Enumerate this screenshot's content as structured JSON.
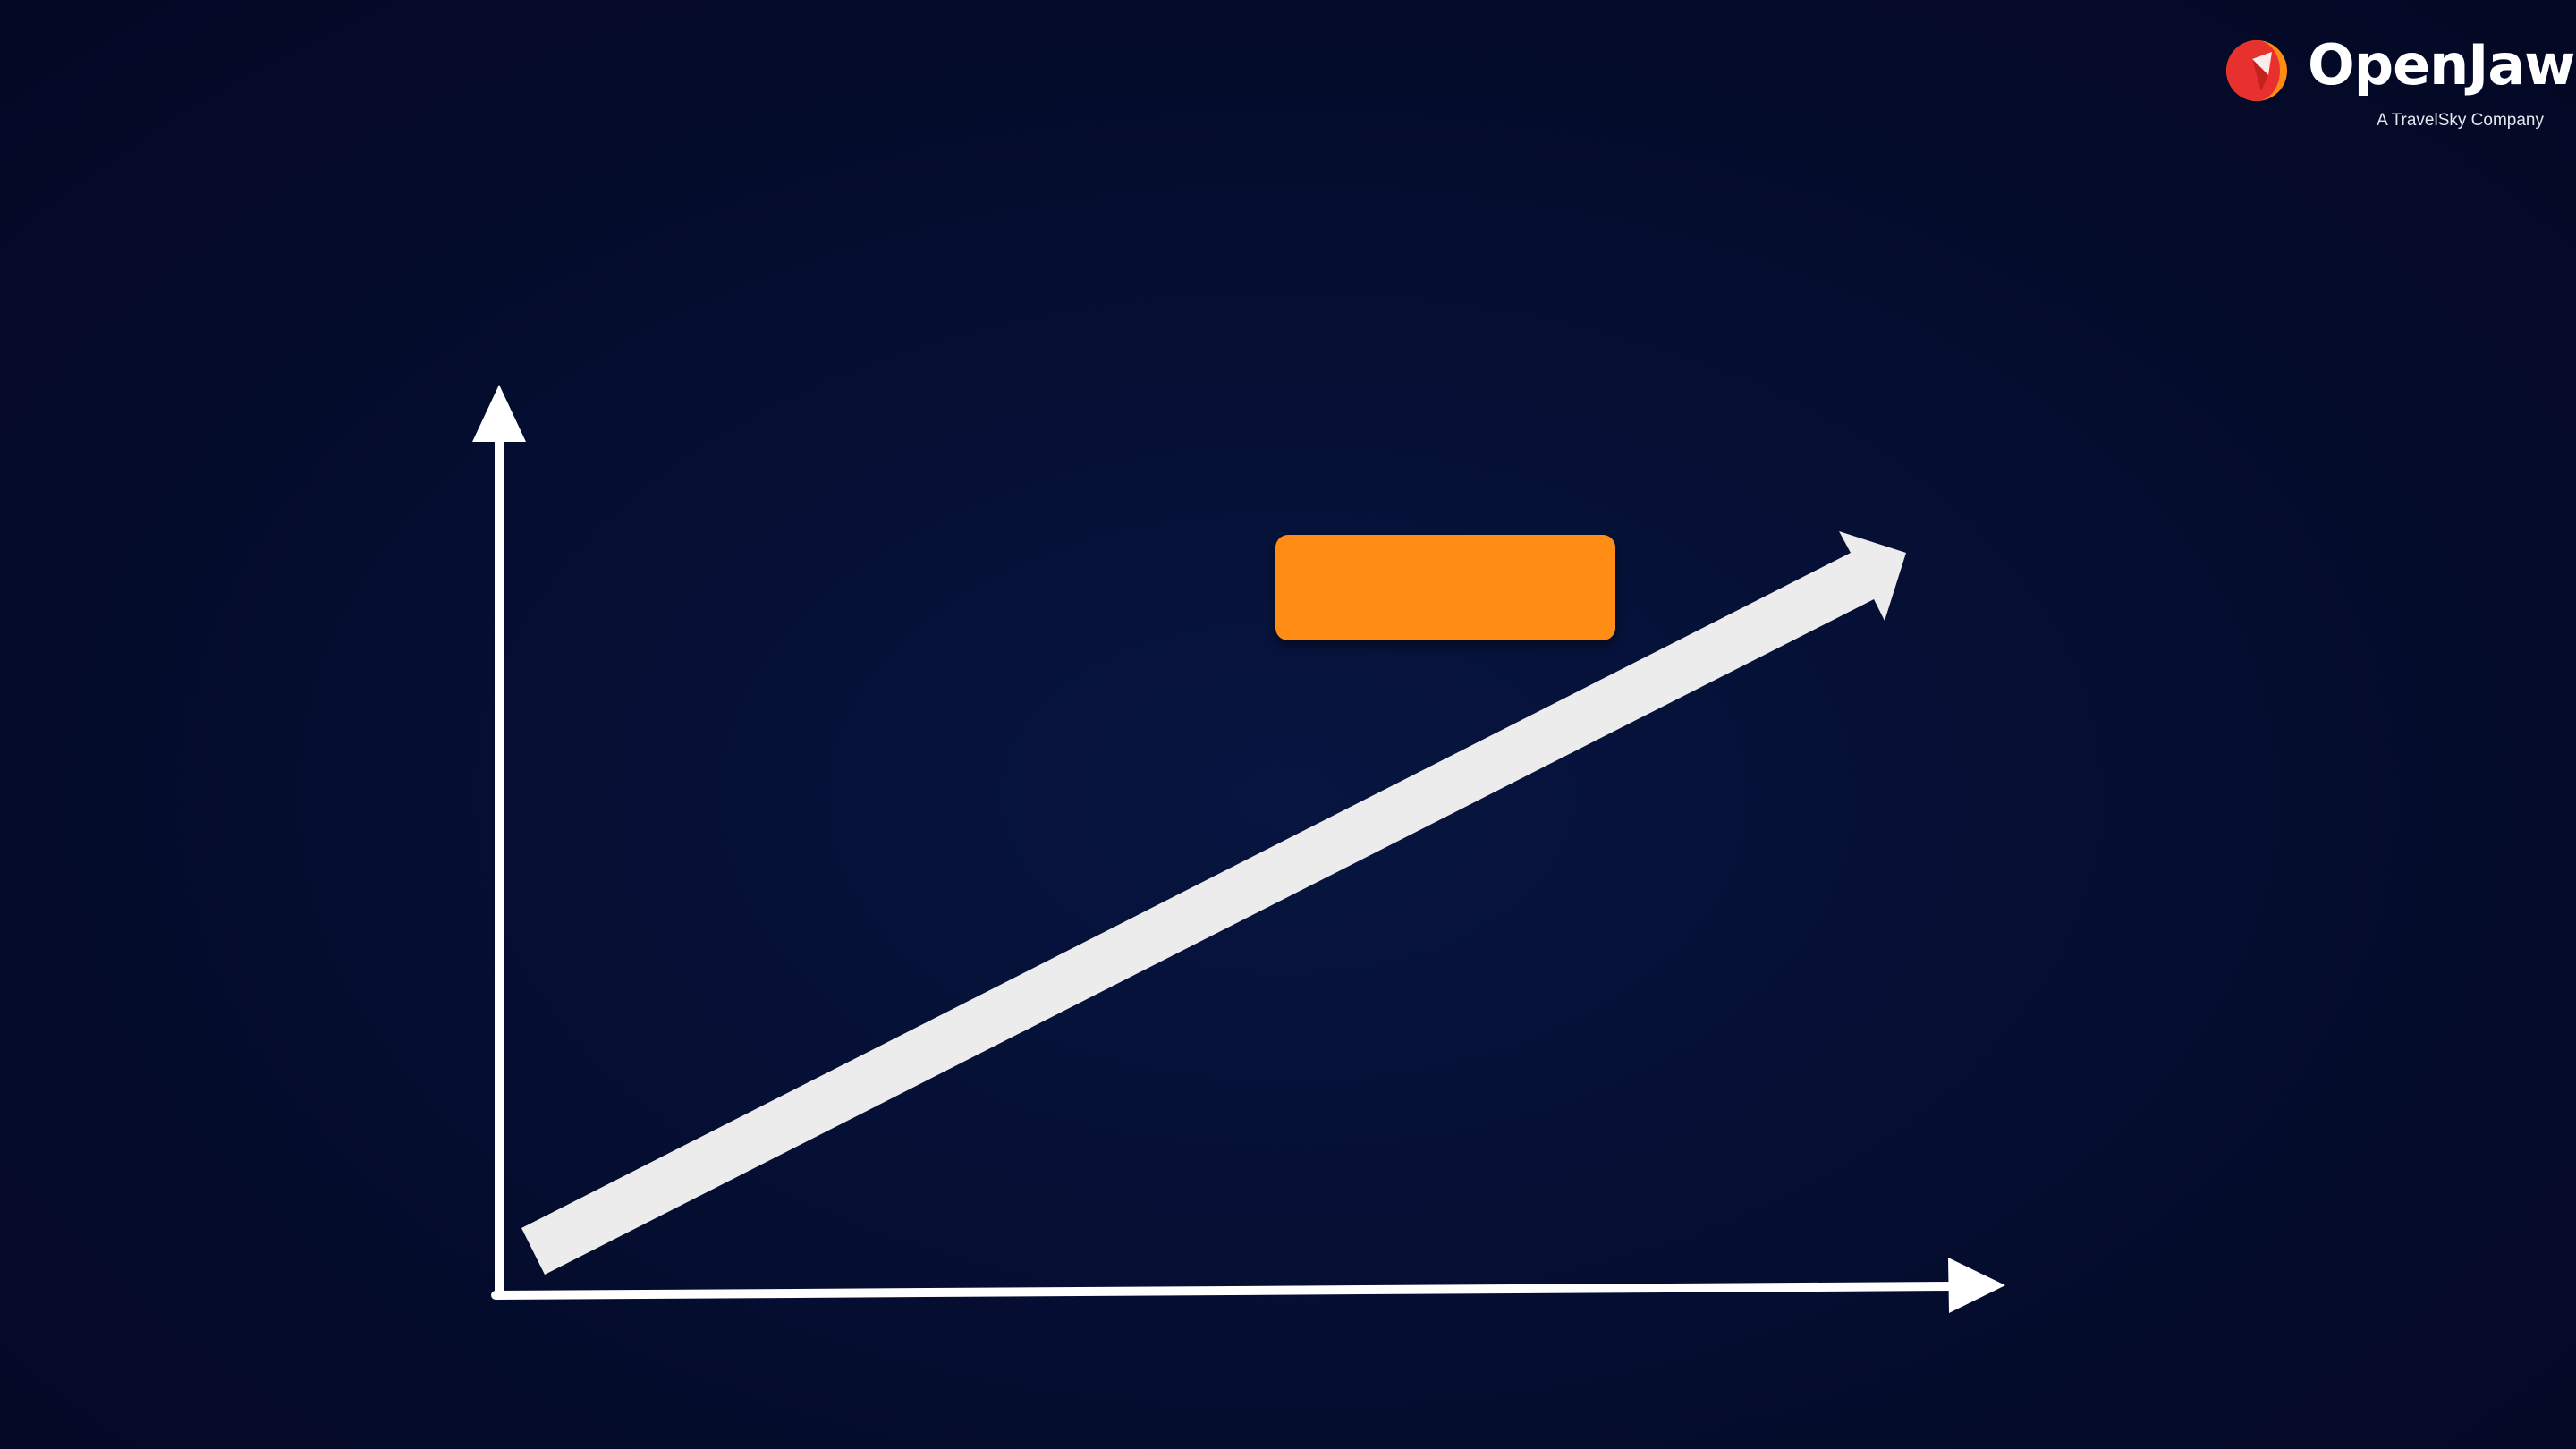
{
  "brand": {
    "name": "OpenJaw",
    "tagline": "A TravelSky Company",
    "colors": {
      "mark_red": "#e8312f",
      "mark_orange": "#ff8c14"
    }
  },
  "diagram": {
    "axes_color": "#ffffff",
    "trend_arrow_color": "#ececec",
    "label_box": {
      "text": "",
      "color": "#ff8c14"
    }
  },
  "background": {
    "color": "#050d30"
  }
}
